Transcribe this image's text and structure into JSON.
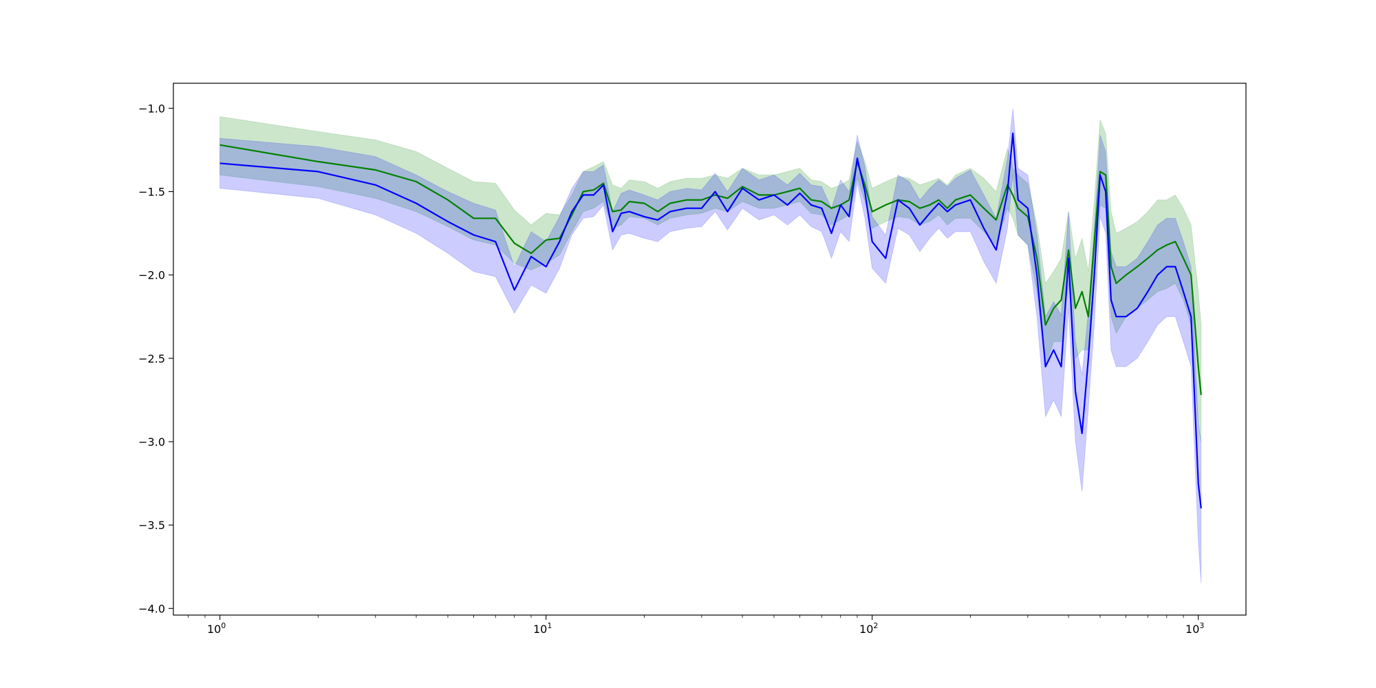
{
  "chart_data": {
    "type": "line",
    "title": "",
    "xlabel": "",
    "ylabel": "",
    "xscale": "log",
    "xlim": [
      0.72,
      1400
    ],
    "ylim": [
      -4.04,
      -0.85
    ],
    "grid": false,
    "legend": "none",
    "x_ticks": [
      {
        "base": "10",
        "exp": "0",
        "value": 1
      },
      {
        "base": "10",
        "exp": "1",
        "value": 10
      },
      {
        "base": "10",
        "exp": "2",
        "value": 100
      },
      {
        "base": "10",
        "exp": "3",
        "value": 1000
      }
    ],
    "y_ticks": [
      {
        "label": "−1.0",
        "value": -1.0
      },
      {
        "label": "−1.5",
        "value": -1.5
      },
      {
        "label": "−2.0",
        "value": -2.0
      },
      {
        "label": "−2.5",
        "value": -2.5
      },
      {
        "label": "−3.0",
        "value": -3.0
      },
      {
        "label": "−3.5",
        "value": -3.5
      },
      {
        "label": "−4.0",
        "value": -4.0
      }
    ],
    "series": [
      {
        "color": "#008000",
        "band_color": "#008000",
        "band_opacity": 0.2,
        "x": [
          1,
          2,
          3,
          4,
          5,
          6,
          7,
          8,
          9,
          10,
          11,
          12,
          13,
          14,
          15,
          16,
          17,
          18,
          20,
          22,
          24,
          27,
          30,
          33,
          36,
          40,
          45,
          50,
          55,
          60,
          65,
          70,
          75,
          80,
          85,
          90,
          95,
          100,
          110,
          120,
          130,
          140,
          150,
          160,
          170,
          180,
          200,
          220,
          240,
          260,
          270,
          280,
          300,
          320,
          340,
          360,
          380,
          400,
          420,
          440,
          460,
          480,
          500,
          520,
          540,
          560,
          600,
          650,
          700,
          750,
          800,
          850,
          900,
          950,
          1000,
          1020
        ],
        "y": [
          -1.22,
          -1.32,
          -1.37,
          -1.44,
          -1.55,
          -1.66,
          -1.66,
          -1.81,
          -1.87,
          -1.79,
          -1.78,
          -1.64,
          -1.5,
          -1.49,
          -1.45,
          -1.62,
          -1.61,
          -1.56,
          -1.57,
          -1.62,
          -1.57,
          -1.55,
          -1.55,
          -1.52,
          -1.54,
          -1.47,
          -1.52,
          -1.52,
          -1.5,
          -1.48,
          -1.55,
          -1.56,
          -1.6,
          -1.58,
          -1.55,
          -1.32,
          -1.46,
          -1.62,
          -1.58,
          -1.55,
          -1.56,
          -1.6,
          -1.58,
          -1.55,
          -1.6,
          -1.55,
          -1.52,
          -1.6,
          -1.67,
          -1.46,
          -1.52,
          -1.6,
          -1.65,
          -1.9,
          -2.3,
          -2.2,
          -2.15,
          -1.85,
          -2.2,
          -2.1,
          -2.25,
          -1.8,
          -1.38,
          -1.4,
          -1.95,
          -2.05,
          -2.0,
          -1.95,
          -1.9,
          -1.85,
          -1.82,
          -1.8,
          -1.9,
          -2.0,
          -2.55,
          -2.72
        ],
        "lower": [
          -1.4,
          -1.47,
          -1.54,
          -1.62,
          -1.71,
          -1.79,
          -1.82,
          -1.93,
          -1.97,
          -1.93,
          -1.88,
          -1.74,
          -1.62,
          -1.6,
          -1.56,
          -1.72,
          -1.7,
          -1.65,
          -1.66,
          -1.7,
          -1.66,
          -1.64,
          -1.63,
          -1.6,
          -1.62,
          -1.56,
          -1.6,
          -1.6,
          -1.58,
          -1.56,
          -1.63,
          -1.64,
          -1.7,
          -1.67,
          -1.64,
          -1.42,
          -1.56,
          -1.72,
          -1.68,
          -1.65,
          -1.66,
          -1.7,
          -1.68,
          -1.64,
          -1.7,
          -1.66,
          -1.66,
          -1.74,
          -1.82,
          -1.6,
          -1.66,
          -1.76,
          -1.82,
          -2.1,
          -2.55,
          -2.4,
          -2.4,
          -2.05,
          -2.5,
          -2.45,
          -2.45,
          -2.0,
          -1.58,
          -1.6,
          -2.25,
          -2.35,
          -2.25,
          -2.2,
          -2.15,
          -2.1,
          -2.08,
          -2.05,
          -2.15,
          -2.3,
          -2.9,
          -3.0
        ],
        "upper": [
          -1.05,
          -1.14,
          -1.19,
          -1.26,
          -1.36,
          -1.44,
          -1.45,
          -1.61,
          -1.7,
          -1.63,
          -1.64,
          -1.52,
          -1.38,
          -1.35,
          -1.32,
          -1.46,
          -1.48,
          -1.43,
          -1.44,
          -1.48,
          -1.44,
          -1.42,
          -1.42,
          -1.4,
          -1.42,
          -1.36,
          -1.4,
          -1.4,
          -1.38,
          -1.36,
          -1.43,
          -1.44,
          -1.48,
          -1.46,
          -1.43,
          -1.2,
          -1.32,
          -1.48,
          -1.44,
          -1.41,
          -1.42,
          -1.46,
          -1.44,
          -1.42,
          -1.46,
          -1.4,
          -1.36,
          -1.42,
          -1.5,
          -1.24,
          -1.36,
          -1.4,
          -1.45,
          -1.7,
          -2.05,
          -1.98,
          -1.9,
          -1.62,
          -1.9,
          -1.78,
          -1.98,
          -1.55,
          -1.07,
          -1.15,
          -1.62,
          -1.75,
          -1.72,
          -1.68,
          -1.62,
          -1.55,
          -1.55,
          -1.52,
          -1.6,
          -1.7,
          -2.1,
          -2.3
        ]
      },
      {
        "color": "#0000ff",
        "band_color": "#0000ff",
        "band_opacity": 0.2,
        "x": [
          1,
          2,
          3,
          4,
          5,
          6,
          7,
          8,
          9,
          10,
          11,
          12,
          13,
          14,
          15,
          16,
          17,
          18,
          20,
          22,
          24,
          27,
          30,
          33,
          36,
          40,
          45,
          50,
          55,
          60,
          65,
          70,
          75,
          80,
          85,
          90,
          95,
          100,
          110,
          120,
          130,
          140,
          150,
          160,
          170,
          180,
          200,
          220,
          240,
          260,
          270,
          280,
          300,
          320,
          340,
          360,
          380,
          400,
          420,
          440,
          460,
          480,
          500,
          520,
          540,
          560,
          600,
          650,
          700,
          750,
          800,
          850,
          900,
          950,
          1000,
          1020
        ],
        "y": [
          -1.33,
          -1.38,
          -1.46,
          -1.57,
          -1.68,
          -1.76,
          -1.8,
          -2.09,
          -1.89,
          -1.95,
          -1.8,
          -1.62,
          -1.52,
          -1.52,
          -1.46,
          -1.74,
          -1.63,
          -1.62,
          -1.65,
          -1.67,
          -1.62,
          -1.6,
          -1.6,
          -1.5,
          -1.62,
          -1.48,
          -1.55,
          -1.52,
          -1.58,
          -1.51,
          -1.58,
          -1.6,
          -1.75,
          -1.58,
          -1.65,
          -1.3,
          -1.5,
          -1.8,
          -1.9,
          -1.55,
          -1.6,
          -1.7,
          -1.63,
          -1.57,
          -1.62,
          -1.58,
          -1.55,
          -1.72,
          -1.85,
          -1.5,
          -1.15,
          -1.55,
          -1.6,
          -2.0,
          -2.55,
          -2.45,
          -2.55,
          -1.9,
          -2.7,
          -2.95,
          -2.5,
          -2.0,
          -1.4,
          -1.5,
          -2.15,
          -2.25,
          -2.25,
          -2.2,
          -2.1,
          -2.0,
          -1.95,
          -1.95,
          -2.1,
          -2.25,
          -3.25,
          -3.4
        ],
        "lower": [
          -1.48,
          -1.54,
          -1.64,
          -1.75,
          -1.87,
          -1.98,
          -2.01,
          -2.23,
          -2.06,
          -2.11,
          -1.96,
          -1.76,
          -1.66,
          -1.65,
          -1.58,
          -1.85,
          -1.76,
          -1.75,
          -1.78,
          -1.8,
          -1.74,
          -1.72,
          -1.71,
          -1.62,
          -1.73,
          -1.6,
          -1.67,
          -1.64,
          -1.7,
          -1.64,
          -1.71,
          -1.74,
          -1.9,
          -1.74,
          -1.8,
          -1.45,
          -1.66,
          -1.96,
          -2.05,
          -1.72,
          -1.76,
          -1.86,
          -1.78,
          -1.72,
          -1.78,
          -1.74,
          -1.74,
          -1.92,
          -2.05,
          -1.72,
          -1.4,
          -1.76,
          -1.82,
          -2.25,
          -2.85,
          -2.75,
          -2.85,
          -2.2,
          -3.0,
          -3.3,
          -2.8,
          -2.3,
          -1.65,
          -1.75,
          -2.45,
          -2.55,
          -2.55,
          -2.5,
          -2.4,
          -2.3,
          -2.25,
          -2.25,
          -2.4,
          -2.55,
          -3.6,
          -3.85
        ],
        "upper": [
          -1.18,
          -1.23,
          -1.29,
          -1.4,
          -1.5,
          -1.57,
          -1.61,
          -1.95,
          -1.74,
          -1.8,
          -1.65,
          -1.48,
          -1.38,
          -1.38,
          -1.34,
          -1.62,
          -1.51,
          -1.49,
          -1.52,
          -1.55,
          -1.5,
          -1.48,
          -1.49,
          -1.39,
          -1.5,
          -1.36,
          -1.43,
          -1.4,
          -1.46,
          -1.39,
          -1.46,
          -1.47,
          -1.6,
          -1.43,
          -1.5,
          -1.16,
          -1.35,
          -1.65,
          -1.76,
          -1.4,
          -1.44,
          -1.55,
          -1.48,
          -1.43,
          -1.47,
          -1.42,
          -1.37,
          -1.52,
          -1.66,
          -1.3,
          -1.0,
          -1.36,
          -1.4,
          -1.76,
          -2.25,
          -2.16,
          -2.24,
          -1.62,
          -2.4,
          -2.6,
          -2.22,
          -1.72,
          -1.16,
          -1.26,
          -1.86,
          -1.95,
          -1.95,
          -1.9,
          -1.8,
          -1.7,
          -1.66,
          -1.66,
          -1.8,
          -1.95,
          -2.9,
          -3.0
        ]
      }
    ]
  }
}
